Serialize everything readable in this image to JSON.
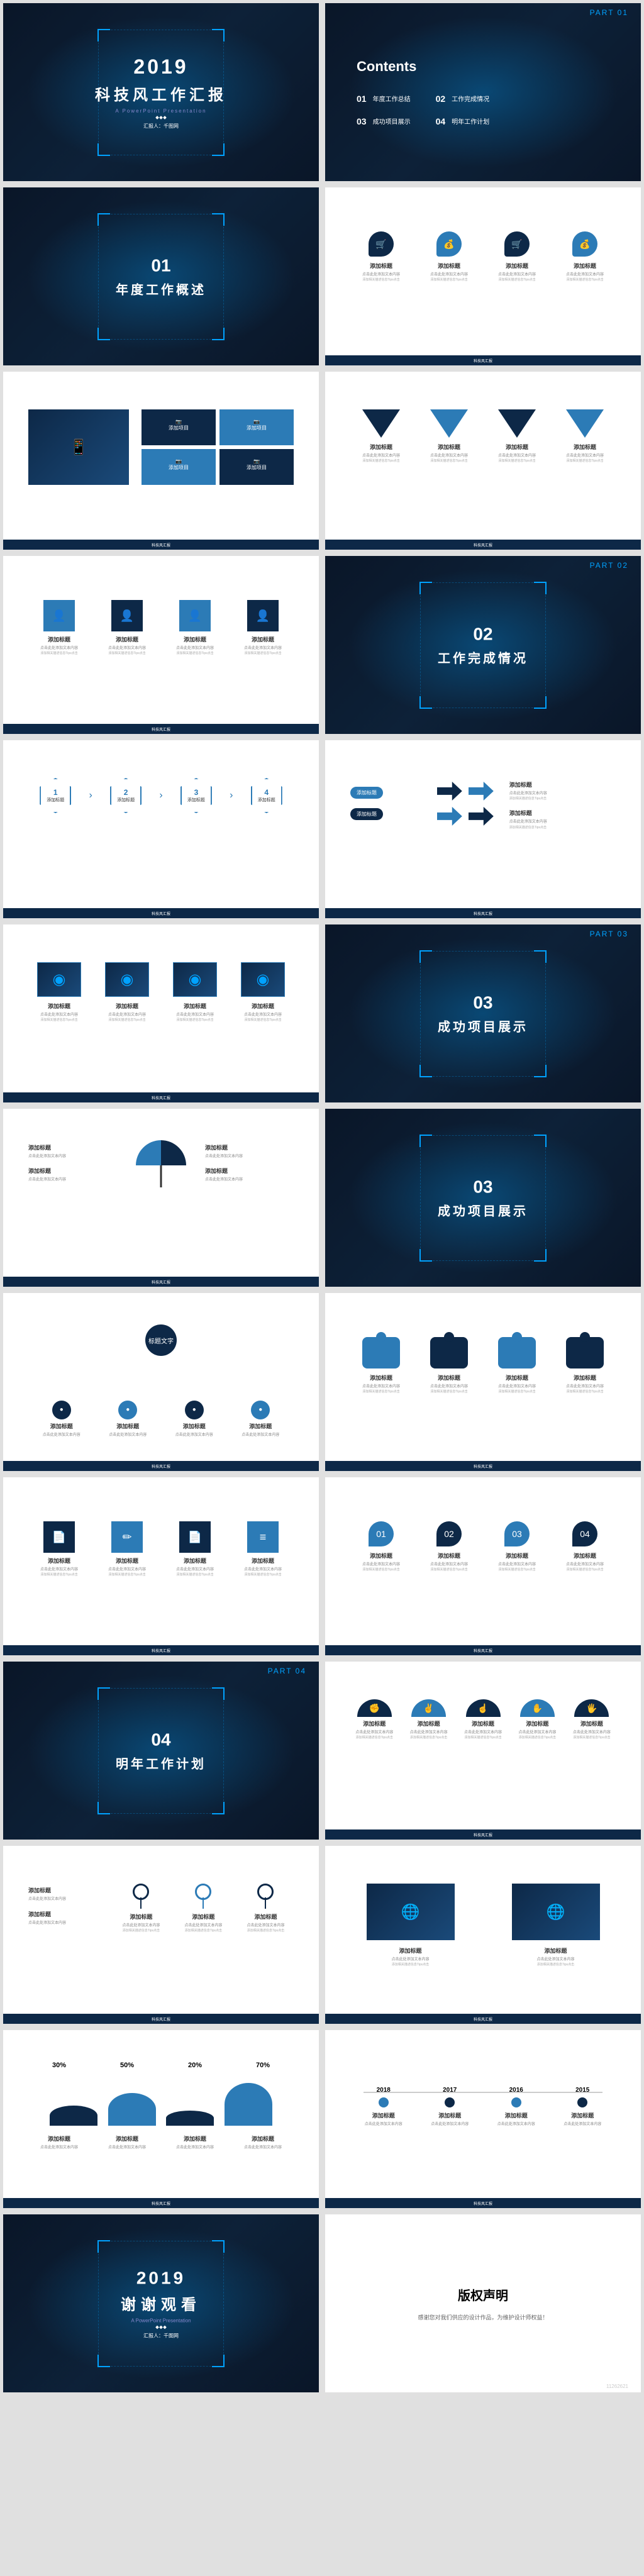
{
  "colors": {
    "primary": "#00a2ff",
    "dark": "#0d2847",
    "blue": "#2c7bb6",
    "darkbg": "#0a1628",
    "grey": "#888"
  },
  "cover": {
    "year": "2019",
    "title": "科技风工作汇报",
    "subtitle": "A PowerPoint Presentation",
    "presenter": "汇报人：千图网"
  },
  "contents": {
    "title": "Contents",
    "items": [
      {
        "num": "01",
        "label": "年度工作总结"
      },
      {
        "num": "02",
        "label": "工作完成情况"
      },
      {
        "num": "03",
        "label": "成功项目展示"
      },
      {
        "num": "04",
        "label": "明年工作计划"
      }
    ]
  },
  "sections": [
    {
      "num": "01",
      "title": "年度工作概述",
      "part": "PART 01"
    },
    {
      "num": "02",
      "title": "工作完成情况",
      "part": "PART 02"
    },
    {
      "num": "03",
      "title": "成功项目展示",
      "part": "PART 03"
    },
    {
      "num": "04",
      "title": "明年工作计划",
      "part": "PART 04"
    }
  ],
  "common": {
    "item_title": "添加标题",
    "desc1": "点击此处添加文本内容",
    "desc2": "添加相关描述信息Tips点击"
  },
  "s3": {
    "bubble_colors": [
      "#0d2847",
      "#2c7bb6",
      "#0d2847",
      "#2c7bb6"
    ],
    "bubble_icons": [
      "🛒",
      "💰",
      "🛒",
      "💰"
    ]
  },
  "s4": {
    "left_items": [
      "添加文字",
      "添加文字"
    ],
    "right_tiles": [
      {
        "color": "#0d2847",
        "label": "添加项目"
      },
      {
        "color": "#2c7bb6",
        "label": "添加项目"
      },
      {
        "color": "#2c7bb6",
        "label": "添加项目"
      },
      {
        "color": "#0d2847",
        "label": "添加项目"
      }
    ]
  },
  "s5": {
    "tri_colors": [
      "#0d2847",
      "#2c7bb6",
      "#0d2847",
      "#2c7bb6"
    ]
  },
  "s6": {
    "sq_colors": [
      "#2c7bb6",
      "#0d2847",
      "#2c7bb6",
      "#0d2847"
    ],
    "icons": [
      "👤",
      "👤",
      "👤",
      "👤"
    ]
  },
  "s8": {
    "hex_nums": [
      "1",
      "2",
      "3",
      "4"
    ]
  },
  "s9": {
    "left_labels": [
      "添加标题",
      "添加标题"
    ]
  },
  "s10": {
    "items": 4
  },
  "s11": {
    "left_items": 4,
    "umbrella": true
  },
  "s13": {
    "center": "标题文字",
    "nodes": [
      "添加标题",
      "添加标题",
      "添加标题",
      "添加标题"
    ],
    "node_colors": [
      "#0d2847",
      "#2c7bb6",
      "#0d2847",
      "#2c7bb6"
    ]
  },
  "s14": {
    "puzzle_colors": [
      "#2c7bb6",
      "#0d2847",
      "#2c7bb6",
      "#0d2847"
    ]
  },
  "s15": {
    "sq_colors": [
      "#0d2847",
      "#2c7bb6",
      "#0d2847",
      "#2c7bb6"
    ],
    "icons": [
      "📄",
      "✏",
      "📄",
      "≡"
    ]
  },
  "s16": {
    "bubble_colors": [
      "#2c7bb6",
      "#0d2847",
      "#2c7bb6",
      "#0d2847"
    ],
    "nums": [
      "01",
      "02",
      "03",
      "04"
    ]
  },
  "s18": {
    "colors": [
      "#0d2847",
      "#2c7bb6",
      "#0d2847",
      "#2c7bb6",
      "#0d2847"
    ],
    "icons": [
      "✊",
      "✌",
      "☝",
      "✋",
      "🖐"
    ]
  },
  "s19": {
    "pin_colors": [
      "#0d2847",
      "#2c7bb6",
      "#0d2847"
    ]
  },
  "s20": {
    "items": 2
  },
  "s21": {
    "pcts": [
      "30%",
      "50%",
      "20%",
      "70%"
    ],
    "heights": [
      30,
      50,
      20,
      70
    ],
    "colors": [
      "#0d2847",
      "#2c7bb6",
      "#0d2847",
      "#2c7bb6"
    ]
  },
  "s22": {
    "years": [
      "2018",
      "2017",
      "2016",
      "2015"
    ],
    "colors": [
      "#2c7bb6",
      "#0d2847",
      "#2c7bb6",
      "#0d2847"
    ]
  },
  "closing": {
    "year": "2019",
    "title": "谢谢观看",
    "subtitle": "A PowerPoint Presentation",
    "presenter": "汇报人：千图网"
  },
  "copyright": {
    "title": "版权声明",
    "text": "感谢您对我们供应的设计作品，为维护设计师权益！"
  },
  "footer": "科技风汇报",
  "watermark_id": "11262621"
}
